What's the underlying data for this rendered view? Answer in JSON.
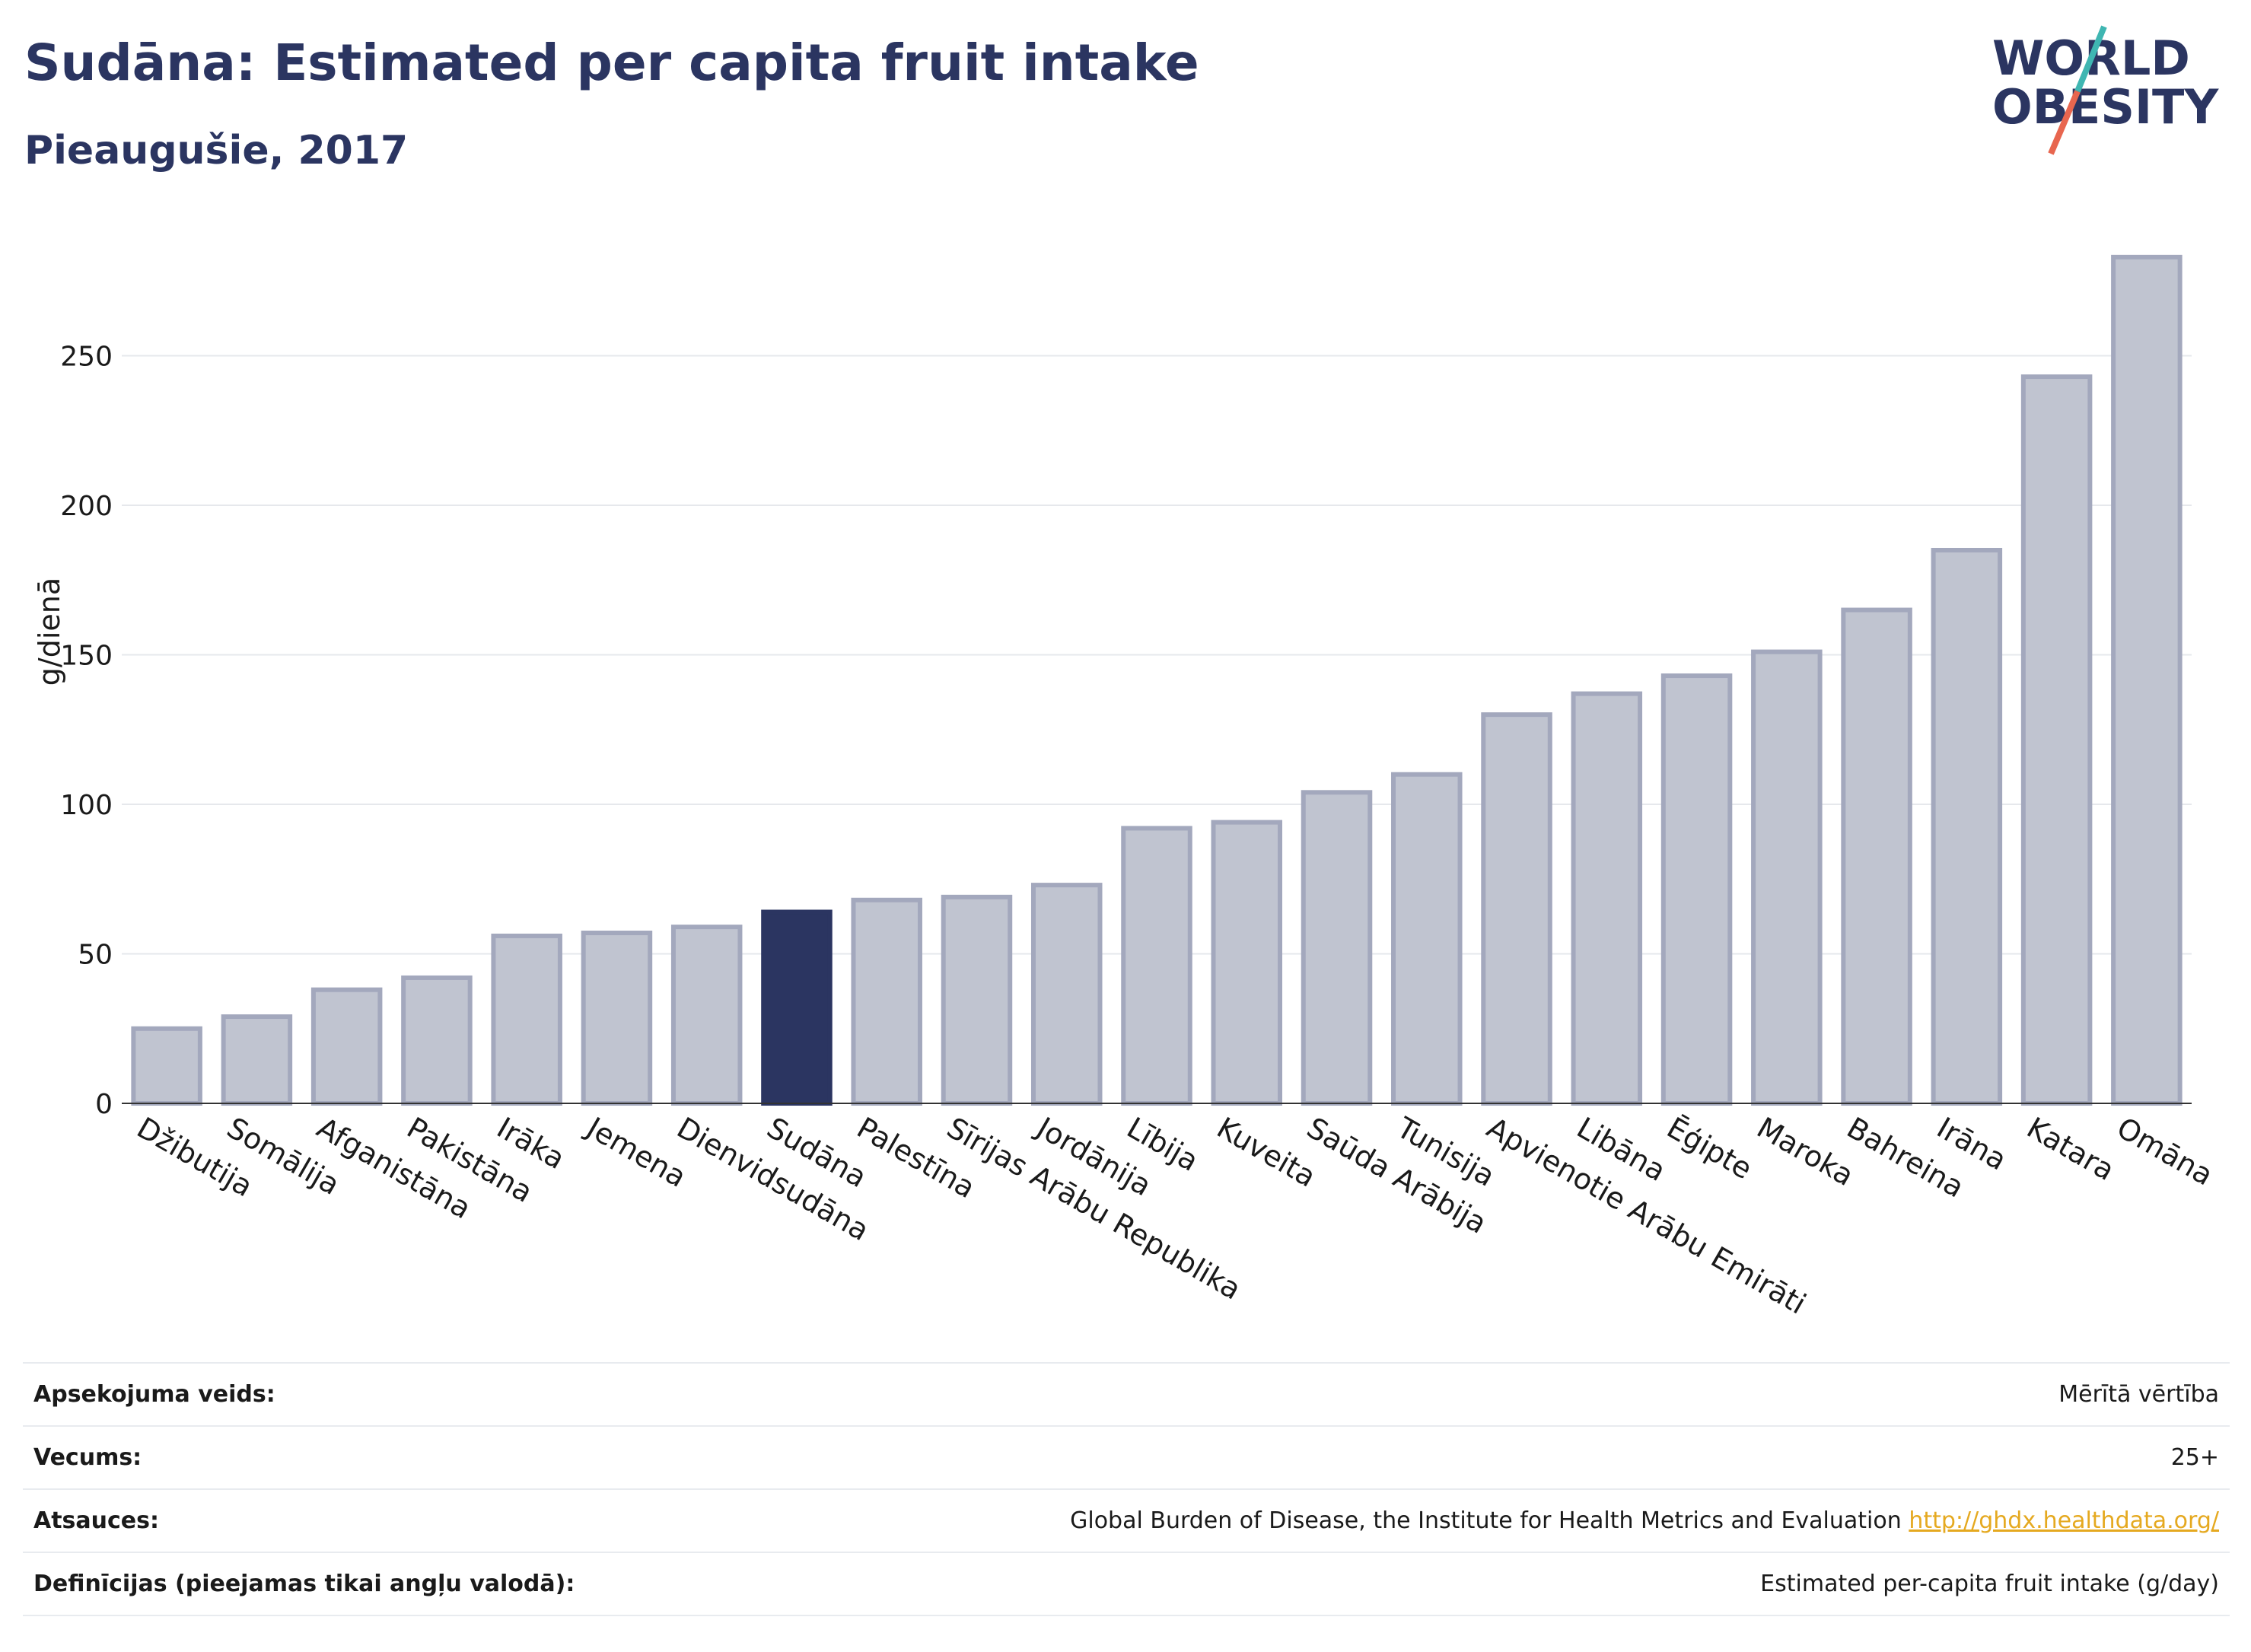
{
  "header": {
    "title": "Sudāna: Estimated per capita fruit intake",
    "subtitle": "Pieaugušie, 2017"
  },
  "logo": {
    "line1": "WORLD",
    "line2": "OBESITY"
  },
  "colors": {
    "brand": "#2b3561",
    "bar": "#c0c4d0",
    "bar_border": "#a3a8bd",
    "highlight": "#2b3561",
    "logo_teal": "#3fb6b2",
    "logo_coral": "#e8664f",
    "link": "#e5a920"
  },
  "chart_data": {
    "type": "bar",
    "title": "Sudāna: Estimated per capita fruit intake",
    "subtitle": "Pieaugušie, 2017",
    "ylabel": "g/dienā",
    "xlabel": "",
    "ylim": [
      0,
      285
    ],
    "yticks": [
      0,
      50,
      100,
      150,
      200,
      250
    ],
    "grid": true,
    "highlight": "Sudāna",
    "categories": [
      "Džibutija",
      "Somālija",
      "Afganistāna",
      "Pakistāna",
      "Irāka",
      "Jemena",
      "Dienvidsudāna",
      "Sudāna",
      "Palestīna",
      "Sīrijas Arābu Republika",
      "Jordānija",
      "Lībija",
      "Kuveita",
      "Saūda Arābija",
      "Tunisija",
      "Apvienotie Arābu Emirāti",
      "Libāna",
      "Ēģipte",
      "Maroka",
      "Bahreina",
      "Irāna",
      "Katara",
      "Omāna"
    ],
    "values": [
      25,
      29,
      38,
      42,
      56,
      57,
      59,
      64,
      68,
      69,
      73,
      92,
      94,
      104,
      110,
      130,
      137,
      143,
      151,
      165,
      185,
      243,
      283
    ]
  },
  "meta": {
    "rows": [
      {
        "key": "Apsekojuma veids:",
        "value": "Mērītā vērtība"
      },
      {
        "key": "Vecums:",
        "value": "25+"
      },
      {
        "key": "Atsauces:",
        "value": "Global Burden of Disease, the Institute for Health Metrics and Evaluation",
        "link": "http://ghdx.healthdata.org/"
      },
      {
        "key": "Definīcijas (pieejamas tikai angļu valodā):",
        "value": "Estimated per-capita fruit intake (g/day)"
      }
    ]
  }
}
